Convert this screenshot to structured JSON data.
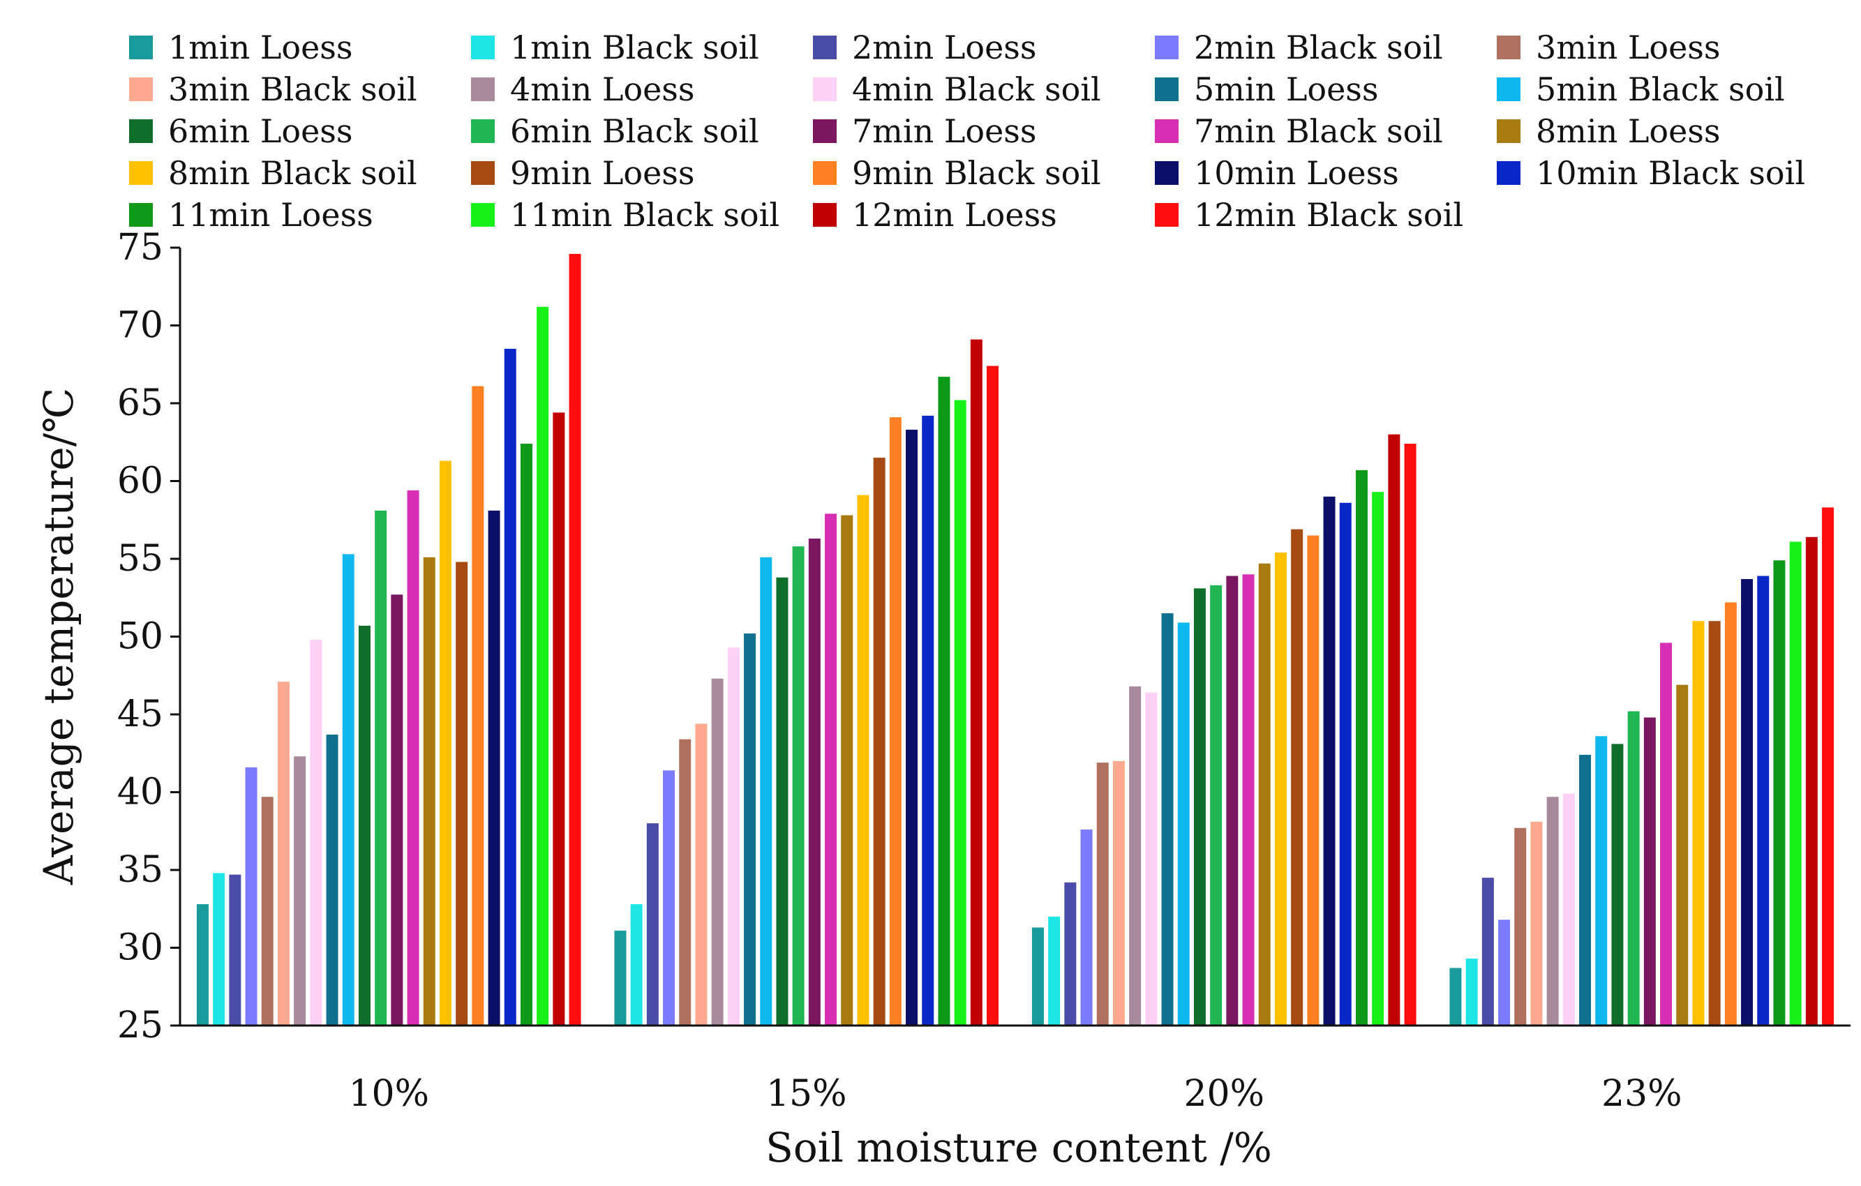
{
  "chart_data": {
    "type": "bar",
    "title": "",
    "xlabel": "Soil moisture content /%",
    "ylabel": "Average temperature/℃",
    "ylim": [
      25,
      75
    ],
    "yticks": [
      25,
      30,
      35,
      40,
      45,
      50,
      55,
      60,
      65,
      70,
      75
    ],
    "categories": [
      "10%",
      "15%",
      "20%",
      "23%"
    ],
    "legend_position": "top",
    "series": [
      {
        "name": "1min Loess",
        "color": "#1a9b9b",
        "values": [
          32.8,
          31.1,
          31.3,
          28.7
        ]
      },
      {
        "name": "1min Black soil",
        "color": "#1ee6e6",
        "values": [
          34.8,
          32.8,
          32.0,
          29.3
        ]
      },
      {
        "name": "2min Loess",
        "color": "#4b4ba8",
        "values": [
          34.7,
          38.0,
          34.2,
          34.5
        ]
      },
      {
        "name": "2min Black soil",
        "color": "#7b7bff",
        "values": [
          41.6,
          41.4,
          37.6,
          31.8
        ]
      },
      {
        "name": "3min Loess",
        "color": "#b0705e",
        "values": [
          39.7,
          43.4,
          41.9,
          37.7
        ]
      },
      {
        "name": "3min Black soil",
        "color": "#ffa990",
        "values": [
          47.1,
          44.4,
          42.0,
          38.1
        ]
      },
      {
        "name": "4min Loess",
        "color": "#a88a9c",
        "values": [
          42.3,
          47.3,
          46.8,
          39.7
        ]
      },
      {
        "name": "4min Black soil",
        "color": "#ffd0f5",
        "values": [
          49.8,
          49.3,
          46.4,
          39.9
        ]
      },
      {
        "name": "5min Loess",
        "color": "#116f90",
        "values": [
          43.7,
          50.2,
          51.5,
          42.4
        ]
      },
      {
        "name": "5min Black soil",
        "color": "#10b8f0",
        "values": [
          55.3,
          55.1,
          50.9,
          43.6
        ]
      },
      {
        "name": "6min Loess",
        "color": "#0f6e2c",
        "values": [
          50.7,
          53.8,
          53.1,
          43.1
        ]
      },
      {
        "name": "6min Black soil",
        "color": "#1fb653",
        "values": [
          58.1,
          55.8,
          53.3,
          45.2
        ]
      },
      {
        "name": "7min Loess",
        "color": "#7b1760",
        "values": [
          52.7,
          56.3,
          53.9,
          44.8
        ]
      },
      {
        "name": "7min Black soil",
        "color": "#d62fb3",
        "values": [
          59.4,
          57.9,
          54.0,
          49.6
        ]
      },
      {
        "name": "8min Loess",
        "color": "#a87a10",
        "values": [
          55.1,
          57.8,
          54.7,
          46.9
        ]
      },
      {
        "name": "8min Black soil",
        "color": "#ffc000",
        "values": [
          61.3,
          59.1,
          55.4,
          51.0
        ]
      },
      {
        "name": "9min Loess",
        "color": "#a44a12",
        "values": [
          54.8,
          61.5,
          56.9,
          51.0
        ]
      },
      {
        "name": "9min Black soil",
        "color": "#ff8020",
        "values": [
          66.1,
          64.1,
          56.5,
          52.2
        ]
      },
      {
        "name": "10min Loess",
        "color": "#0b0f68",
        "values": [
          58.1,
          63.3,
          59.0,
          53.7
        ]
      },
      {
        "name": "10min Black soil",
        "color": "#0a27c8",
        "values": [
          68.5,
          64.2,
          58.6,
          53.9
        ]
      },
      {
        "name": "11min Loess",
        "color": "#0c9a18",
        "values": [
          62.4,
          66.7,
          60.7,
          54.9
        ]
      },
      {
        "name": "11min Black soil",
        "color": "#19f019",
        "values": [
          71.2,
          65.2,
          59.3,
          56.1
        ]
      },
      {
        "name": "12min Loess",
        "color": "#c00000",
        "values": [
          64.4,
          69.1,
          63.0,
          56.4
        ]
      },
      {
        "name": "12min Black soil",
        "color": "#ff0d0d",
        "values": [
          74.6,
          67.4,
          62.4,
          58.3
        ]
      }
    ]
  }
}
